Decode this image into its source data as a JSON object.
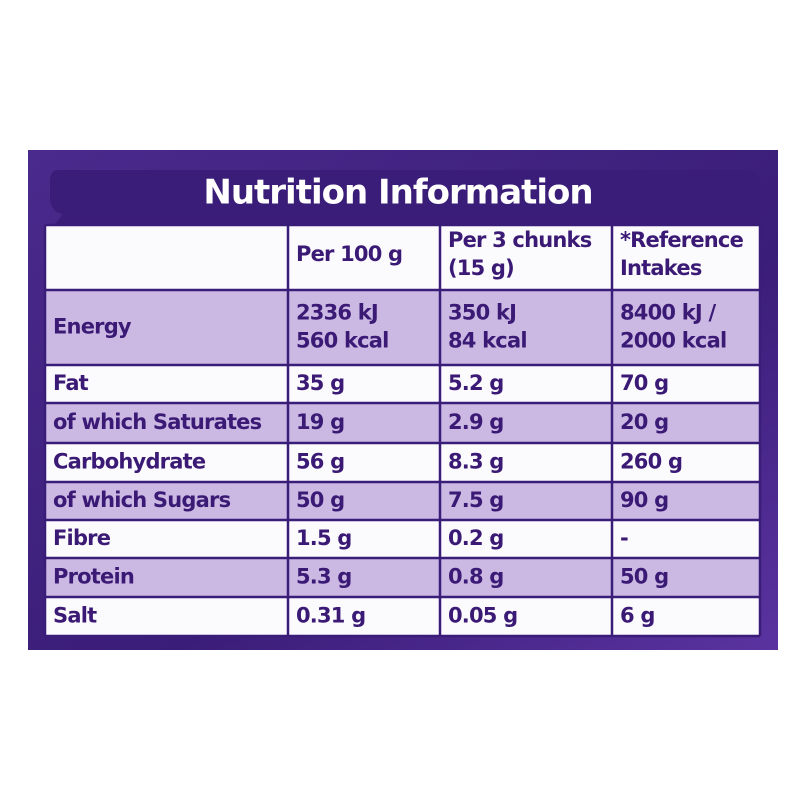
{
  "title": "Nutrition Information",
  "table": {
    "header": [
      [],
      [
        "Per 100 g"
      ],
      [
        "Per 3 chunks",
        "(15 g)"
      ],
      [
        "*Reference",
        "Intakes"
      ]
    ],
    "rows": [
      [
        [
          "Energy"
        ],
        [
          "2336 kJ",
          "560 kcal"
        ],
        [
          "350 kJ",
          "84 kcal"
        ],
        [
          "8400 kJ /",
          "2000 kcal"
        ]
      ],
      [
        [
          "Fat"
        ],
        [
          "35 g"
        ],
        [
          "5.2 g"
        ],
        [
          "70 g"
        ]
      ],
      [
        [
          "of which Saturates"
        ],
        [
          "19 g"
        ],
        [
          "2.9 g"
        ],
        [
          "20 g"
        ]
      ],
      [
        [
          "Carbohydrate"
        ],
        [
          "56 g"
        ],
        [
          "8.3 g"
        ],
        [
          "260 g"
        ]
      ],
      [
        [
          "of which Sugars"
        ],
        [
          "50 g"
        ],
        [
          "7.5 g"
        ],
        [
          "90 g"
        ]
      ],
      [
        [
          "Fibre"
        ],
        [
          "1.5 g"
        ],
        [
          "0.2 g"
        ],
        [
          "-"
        ]
      ],
      [
        [
          "Protein"
        ],
        [
          "5.3 g"
        ],
        [
          "0.8 g"
        ],
        [
          "50 g"
        ]
      ],
      [
        [
          "Salt"
        ],
        [
          "0.31 g"
        ],
        [
          "0.05 g"
        ],
        [
          "6 g"
        ]
      ]
    ]
  }
}
